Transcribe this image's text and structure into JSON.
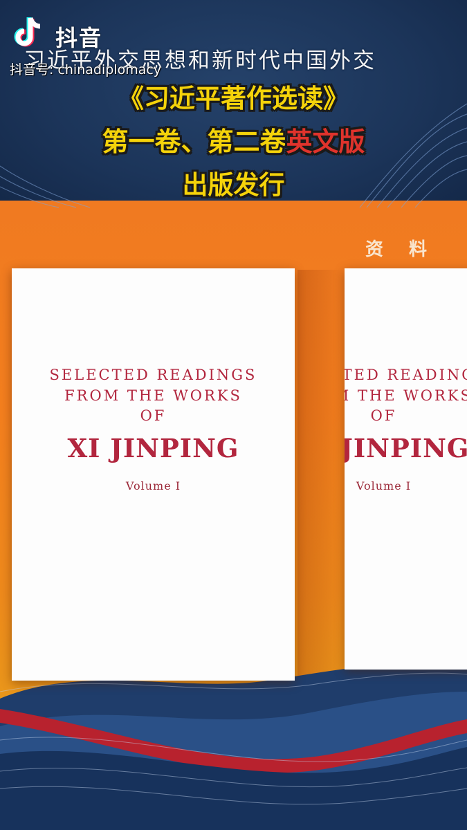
{
  "app": {
    "logo_label": "抖音",
    "handle": "抖音号: chinadiplomacy"
  },
  "header": {
    "subtitle": "习近平外交思想和新时代中国外交",
    "line1": "《习近平著作选读》",
    "line2_yellow": "第一卷、第二卷",
    "line2_red": "英文版",
    "line3": "出版发行"
  },
  "side_label": "资 料",
  "books": [
    {
      "title_line1": "SELECTED READINGS",
      "title_line2": "FROM THE WORKS",
      "title_line3": "OF",
      "author": "XI JINPING",
      "volume": "Volume I"
    },
    {
      "title_line1": "SELECTED READINGS",
      "title_line2": "FROM THE WORKS",
      "title_line3": "OF",
      "author": "XI JINPING",
      "volume": "Volume I"
    }
  ],
  "colors": {
    "background_navy": "#1b3457",
    "orange": "#f07a21",
    "headline_yellow": "#f5d30a",
    "headline_red": "#e0332c",
    "book_title": "#b2263e"
  },
  "icons": [
    "tiktok-logo-icon"
  ]
}
